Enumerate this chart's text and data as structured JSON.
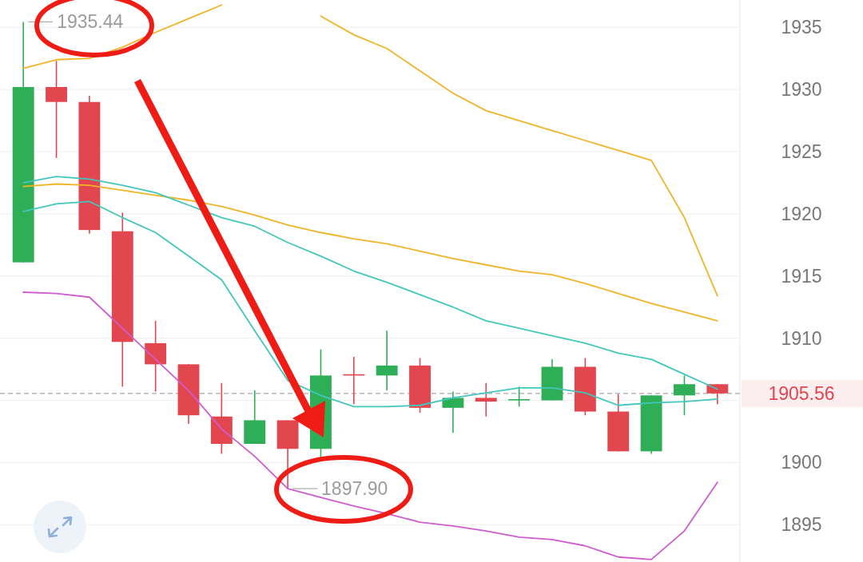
{
  "chart_data": {
    "type": "candlestick",
    "categories": [
      null,
      null,
      null,
      null,
      null,
      null,
      null,
      null,
      null,
      null,
      null,
      null,
      null,
      null,
      null,
      null,
      null,
      null,
      null,
      null,
      null,
      null
    ],
    "ohlc": [
      [
        1916.1,
        1935.44,
        1916.1,
        1930.2
      ],
      [
        1930.2,
        1932.3,
        1924.5,
        1929.0
      ],
      [
        1929.0,
        1929.5,
        1918.4,
        1918.7
      ],
      [
        1918.6,
        1920.1,
        1906.1,
        1909.7
      ],
      [
        1909.6,
        1911.4,
        1905.7,
        1907.9
      ],
      [
        1907.9,
        1907.9,
        1903.1,
        1903.8
      ],
      [
        1903.7,
        1906.4,
        1900.7,
        1901.5
      ],
      [
        1901.5,
        1905.8,
        1901.5,
        1903.4
      ],
      [
        1903.4,
        1903.4,
        1897.9,
        1901.1
      ],
      [
        1901.1,
        1909.1,
        1900.4,
        1907.0
      ],
      [
        1907.1,
        1908.5,
        1904.7,
        1907.0
      ],
      [
        1907.0,
        1910.6,
        1905.8,
        1907.8
      ],
      [
        1907.8,
        1908.4,
        1904.0,
        1904.4
      ],
      [
        1904.4,
        1905.7,
        1902.4,
        1905.2
      ],
      [
        1905.2,
        1906.4,
        1903.7,
        1904.9
      ],
      [
        1905.0,
        1906.1,
        1904.5,
        1905.1
      ],
      [
        1905.0,
        1908.3,
        1905.0,
        1907.7
      ],
      [
        1907.7,
        1908.4,
        1903.8,
        1904.1
      ],
      [
        1904.1,
        1905.5,
        1900.9,
        1900.9
      ],
      [
        1900.9,
        1905.4,
        1900.7,
        1905.4
      ],
      [
        1905.4,
        1907.0,
        1903.8,
        1906.3
      ],
      [
        1906.3,
        1906.3,
        1904.7,
        1905.56
      ]
    ],
    "colors": [
      "#2fae58",
      "#e2464f",
      "#e2464f",
      "#e2464f",
      "#e2464f",
      "#e2464f",
      "#e2464f",
      "#2fae58",
      "#e2464f",
      "#2fae58",
      "#e2464f",
      "#2fae58",
      "#e2464f",
      "#2fae58",
      "#e2464f",
      "#2fae58",
      "#2fae58",
      "#e2464f",
      "#e2464f",
      "#2fae58",
      "#2fae58",
      "#e2464f"
    ],
    "series": [
      {
        "type": "line",
        "color": "#f0b429",
        "values": [
          1931.7,
          1932.4,
          1932.5,
          1933.4,
          1934.6,
          1935.7,
          1936.8,
          null,
          null,
          1935.9,
          1934.4,
          1933.3,
          1931.5,
          1929.7,
          1928.3,
          1927.5,
          1926.7,
          1925.9,
          1925.1,
          1924.3,
          1919.7,
          1913.4
        ]
      },
      {
        "type": "line",
        "color": "#f0b429",
        "values": [
          1922.2,
          1922.4,
          1922.3,
          1921.9,
          1921.5,
          1921.1,
          1920.6,
          1919.9,
          1919.1,
          1918.5,
          1918.0,
          1917.6,
          1917.0,
          1916.4,
          1915.9,
          1915.4,
          1915.1,
          1914.4,
          1913.6,
          1912.8,
          1912.1,
          1911.4
        ]
      },
      {
        "type": "line",
        "color": "#42c7bd",
        "values": [
          1922.5,
          1923.0,
          1922.8,
          1922.3,
          1921.7,
          1920.7,
          1919.7,
          1919.0,
          1917.7,
          1916.6,
          1915.4,
          1914.5,
          1913.5,
          1912.5,
          1911.4,
          1910.8,
          1910.2,
          1909.6,
          1908.8,
          1908.3,
          1907.1,
          1905.9
        ]
      },
      {
        "type": "line",
        "color": "#42c7bd",
        "values": [
          1920.2,
          1920.8,
          1921.0,
          1919.7,
          1918.5,
          1916.6,
          1914.7,
          1910.6,
          1906.6,
          1905.4,
          1904.5,
          1904.5,
          1904.6,
          1905.2,
          1905.6,
          1906.0,
          1906.0,
          1905.6,
          1904.6,
          1904.8,
          1904.9,
          1905.1
        ]
      },
      {
        "type": "line",
        "color": "#cf5ccf",
        "values": [
          1913.7,
          1913.6,
          1913.3,
          1910.8,
          1908.3,
          1905.8,
          1902.7,
          1900.5,
          1897.9,
          1897.2,
          1896.5,
          1895.9,
          1895.2,
          1894.9,
          1894.5,
          1894.0,
          1893.8,
          1893.3,
          1892.4,
          1892.2,
          1894.5,
          1898.4
        ]
      }
    ],
    "ylim": [
      1892,
      1937.2
    ],
    "yticks": [
      1895,
      1900,
      {
        "value": 1905,
        "label": null
      },
      1910,
      1915,
      1920,
      1925,
      1930,
      1935
    ],
    "grid": "y",
    "ref_lines": [
      {
        "axis": "y",
        "value": 1905.56,
        "label": "1905.56",
        "color": "#a8a8a8",
        "line_style": "dashed"
      }
    ],
    "annotations": [
      "1935.44",
      "1897.90"
    ]
  }
}
